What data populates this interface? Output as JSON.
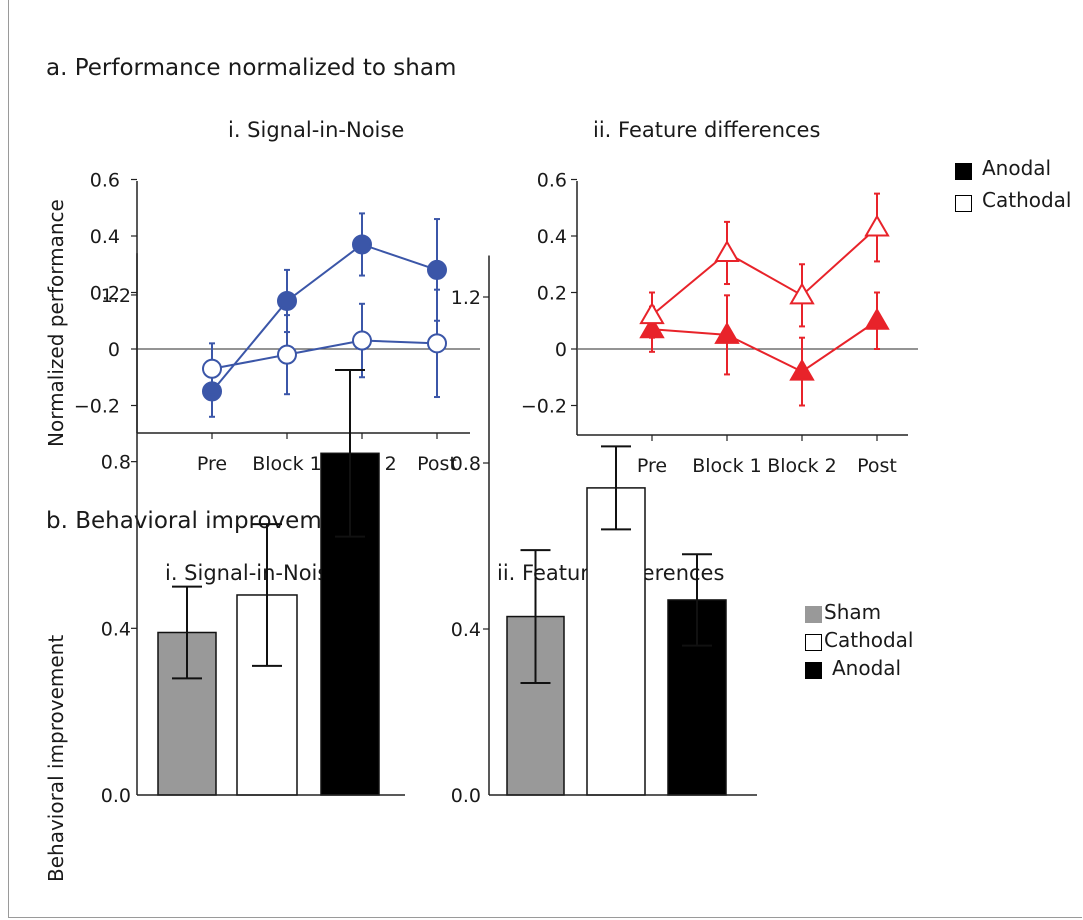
{
  "section_a": {
    "title": "a. Performance normalized to sham",
    "ylabel": "Normalized performance",
    "legend": [
      {
        "label": "Anodal",
        "fill": "#000000"
      },
      {
        "label": "Cathodal",
        "fill": "#ffffff"
      }
    ]
  },
  "section_b": {
    "title": "b. Behavioral improvement",
    "ylabel": "Behavioral improvement",
    "legend": [
      {
        "label": "Sham",
        "fill": "#999999"
      },
      {
        "label": "Cathodal",
        "fill": "#ffffff"
      },
      {
        "label": "Anodal",
        "fill": "#000000"
      }
    ]
  },
  "chart_data": [
    {
      "type": "line",
      "title": "i. Signal-in-Noise",
      "categories": [
        "Pre",
        "Block 1",
        "Block 2",
        "Post"
      ],
      "yticks": [
        "0.6",
        "0.4",
        "0.2",
        "0",
        "−0.2"
      ],
      "ylim": [
        -0.3,
        0.6
      ],
      "color": "#3b56a8",
      "marker": "circle",
      "series": [
        {
          "name": "Anodal",
          "values": [
            -0.15,
            0.17,
            0.37,
            0.28
          ],
          "err": [
            0.09,
            0.11,
            0.11,
            0.18
          ],
          "filled": true
        },
        {
          "name": "Cathodal",
          "values": [
            -0.07,
            -0.02,
            0.03,
            0.02
          ],
          "err": [
            0.09,
            0.14,
            0.13,
            0.19
          ],
          "filled": false
        }
      ]
    },
    {
      "type": "line",
      "title": "ii. Feature differences",
      "categories": [
        "Pre",
        "Block 1",
        "Block 2",
        "Post"
      ],
      "yticks": [
        "0.6",
        "0.4",
        "0.2",
        "0",
        "−0.2"
      ],
      "ylim": [
        -0.3,
        0.6
      ],
      "color": "#e8232a",
      "marker": "triangle",
      "series": [
        {
          "name": "Anodal",
          "values": [
            0.07,
            0.05,
            -0.08,
            0.1
          ],
          "err": [
            0.08,
            0.14,
            0.12,
            0.1
          ],
          "filled": true
        },
        {
          "name": "Cathodal",
          "values": [
            0.12,
            0.34,
            0.19,
            0.43
          ],
          "err": [
            0.08,
            0.11,
            0.11,
            0.12
          ],
          "filled": false
        }
      ]
    },
    {
      "type": "bar",
      "title": "i. Signal-in-Noise",
      "categories": [
        "Sham",
        "Cathodal",
        "Anodal"
      ],
      "values": [
        0.39,
        0.48,
        0.82
      ],
      "err": [
        0.11,
        0.17,
        0.2
      ],
      "colors": [
        "#999999",
        "#ffffff",
        "#000000"
      ],
      "yticks": [
        "1.2",
        "0.8",
        "0.4",
        "0.0"
      ],
      "ylim": [
        0.0,
        1.3
      ]
    },
    {
      "type": "bar",
      "title": "ii. Feature differences",
      "categories": [
        "Sham",
        "Cathodal",
        "Anodal"
      ],
      "values": [
        0.43,
        0.74,
        0.47
      ],
      "err": [
        0.16,
        0.1,
        0.11
      ],
      "colors": [
        "#999999",
        "#ffffff",
        "#000000"
      ],
      "yticks": [
        "1.2",
        "0.8",
        "0.4",
        "0.0"
      ],
      "ylim": [
        0.0,
        1.3
      ]
    }
  ]
}
